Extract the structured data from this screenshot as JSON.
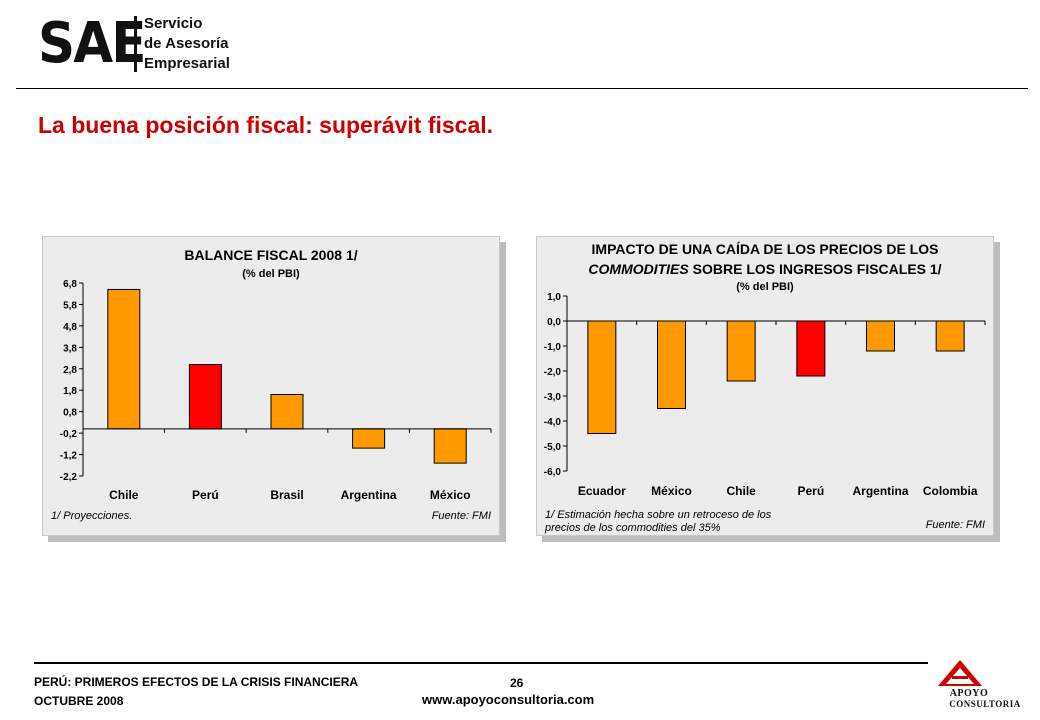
{
  "header": {
    "logo_main": "SAE",
    "logo_lines": [
      "Servicio",
      "de Asesoría",
      "Empresarial"
    ]
  },
  "page_title": "La buena posición fiscal: superávit fiscal.",
  "chart_data": [
    {
      "type": "bar",
      "title": "BALANCE FISCAL 2008 1/",
      "subtitle": "(% del PBI)",
      "categories": [
        "Chile",
        "Perú",
        "Brasil",
        "Argentina",
        "México"
      ],
      "values": [
        6.5,
        3.0,
        1.6,
        -0.9,
        -1.6
      ],
      "highlight_index": 1,
      "ylim": [
        -2.2,
        6.8
      ],
      "yticks": [
        "6,8",
        "5,8",
        "4,8",
        "3,8",
        "2,8",
        "1,8",
        "0,8",
        "-0,2",
        "-1,2",
        "-2,2"
      ],
      "ytick_values": [
        6.8,
        5.8,
        4.8,
        3.8,
        2.8,
        1.8,
        0.8,
        -0.2,
        -1.2,
        -2.2
      ],
      "note_left": "1/ Proyecciones.",
      "note_right": "Fuente: FMI",
      "colors": {
        "bar": "#ff9900",
        "highlight": "#ff0000",
        "background": "#ececec"
      }
    },
    {
      "type": "bar",
      "title_line1": "IMPACTO DE UNA CAÍDA DE LOS PRECIOS DE LOS",
      "title_line2_italic": "COMMODITIES",
      "title_line2_rest": " SOBRE LOS INGRESOS FISCALES 1/",
      "subtitle": "(% del PBI)",
      "categories": [
        "Ecuador",
        "México",
        "Chile",
        "Perú",
        "Argentina",
        "Colombia"
      ],
      "values": [
        -4.5,
        -3.5,
        -2.4,
        -2.2,
        -1.2,
        -1.2
      ],
      "highlight_index": 3,
      "ylim": [
        -6.0,
        1.0
      ],
      "yticks": [
        "1,0",
        "0,0",
        "-1,0",
        "-2,0",
        "-3,0",
        "-4,0",
        "-5,0",
        "-6,0"
      ],
      "ytick_values": [
        1.0,
        0.0,
        -1.0,
        -2.0,
        -3.0,
        -4.0,
        -5.0,
        -6.0
      ],
      "note_left_line1": "1/ Estimación hecha sobre un retroceso de los",
      "note_left_line2": "precios de los commodities del 35%",
      "note_right": "Fuente: FMI",
      "colors": {
        "bar": "#ff9900",
        "highlight": "#ff0000",
        "background": "#ececec"
      }
    }
  ],
  "footer": {
    "line1": "PERÚ: PRIMEROS EFECTOS DE LA CRISIS FINANCIERA",
    "line2": "OCTUBRE 2008",
    "page_number": "26",
    "website": "www.apoyoconsultoria.com",
    "brand_line1": "APOYO",
    "brand_line2": "CONSULTORIA",
    "brand_color": "#cc0000"
  }
}
